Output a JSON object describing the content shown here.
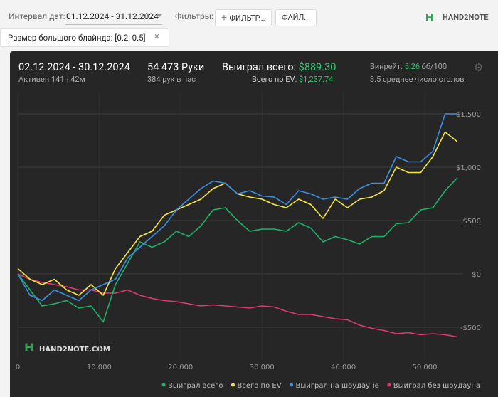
{
  "toolbar": {
    "date_label": "Интервал дат:",
    "date_range": "01.12.2024 - 31.12.2024",
    "filters_label": "Фильтры:",
    "filter_button": "ФИЛЬТР...",
    "file_button": "ФАЙЛ...",
    "logo": "HAND2NOTE"
  },
  "chip": "Размер большого блайнда: [0.2; 0.5]",
  "header": {
    "period": "02.12.2024 - 30.12.2024",
    "active": "Активен 141ч 42м",
    "hands": "54 473 Руки",
    "hands_rate": "384 рук в час",
    "won_label": "Выиграл всего:",
    "won_value": "$889.30",
    "ev_label": "Всего по EV:",
    "ev_value": "$1,237.74",
    "winrate_label": "Винрейт:",
    "winrate_value": "5.26",
    "winrate_unit": "бб/100",
    "tables": "3.5 среднее число столов"
  },
  "watermark": "HAND2NOTE.COM",
  "chart_data": {
    "type": "line",
    "grid": true,
    "xlim": [
      0,
      54700
    ],
    "ylim": [
      -800,
      1700
    ],
    "xticks": [
      {
        "value": 0,
        "label": "0"
      },
      {
        "value": 10000,
        "label": "10 000"
      },
      {
        "value": 20000,
        "label": "20 000"
      },
      {
        "value": 30000,
        "label": "30 000"
      },
      {
        "value": 40000,
        "label": "40 000"
      },
      {
        "value": 50000,
        "label": "50 000"
      }
    ],
    "yticks": [
      {
        "value": -500,
        "label": "-$500"
      },
      {
        "value": 0,
        "label": "$0"
      },
      {
        "value": 500,
        "label": "$500"
      },
      {
        "value": 1000,
        "label": "$1,000"
      },
      {
        "value": 1500,
        "label": "$1,500"
      }
    ],
    "x": [
      0,
      1500,
      3000,
      4500,
      6000,
      7500,
      9000,
      10500,
      12000,
      13500,
      15000,
      16500,
      18000,
      19500,
      21000,
      22500,
      24000,
      25500,
      27000,
      28500,
      30000,
      31500,
      33000,
      34500,
      36000,
      37500,
      39000,
      40500,
      42000,
      43500,
      45000,
      46500,
      48000,
      49500,
      51000,
      52500,
      54000
    ],
    "series": [
      {
        "name": "Выиграл всего",
        "color": "#1db36a",
        "values": [
          0,
          -150,
          -300,
          -280,
          -250,
          -320,
          -300,
          -450,
          -100,
          100,
          300,
          250,
          300,
          400,
          350,
          450,
          600,
          620,
          500,
          400,
          420,
          420,
          400,
          480,
          430,
          300,
          350,
          320,
          280,
          350,
          350,
          470,
          480,
          600,
          620,
          780,
          900
        ]
      },
      {
        "name": "Всего по EV",
        "color": "#f5e642",
        "values": [
          50,
          -50,
          -100,
          -50,
          -150,
          -200,
          -100,
          -200,
          50,
          200,
          350,
          400,
          550,
          600,
          650,
          700,
          800,
          850,
          750,
          720,
          700,
          650,
          620,
          700,
          650,
          520,
          700,
          620,
          700,
          720,
          780,
          1000,
          950,
          950,
          1100,
          1330,
          1240
        ]
      },
      {
        "name": "Выиграл на шоудауне",
        "color": "#3b8fe0",
        "values": [
          0,
          -200,
          -250,
          -150,
          -200,
          -250,
          -150,
          -100,
          -50,
          150,
          250,
          350,
          450,
          600,
          700,
          800,
          870,
          850,
          750,
          780,
          730,
          720,
          650,
          780,
          750,
          700,
          720,
          700,
          800,
          850,
          850,
          1100,
          1050,
          1050,
          1150,
          1500,
          1500
        ]
      },
      {
        "name": "Выиграл без шоудауна",
        "color": "#e0386f",
        "values": [
          0,
          -50,
          -80,
          -100,
          -120,
          -150,
          -150,
          -180,
          -180,
          -150,
          -200,
          -230,
          -250,
          -260,
          -280,
          -300,
          -290,
          -300,
          -310,
          -320,
          -300,
          -310,
          -350,
          -380,
          -380,
          -400,
          -420,
          -430,
          -480,
          -510,
          -530,
          -560,
          -550,
          -570,
          -560,
          -570,
          -590
        ]
      }
    ]
  }
}
